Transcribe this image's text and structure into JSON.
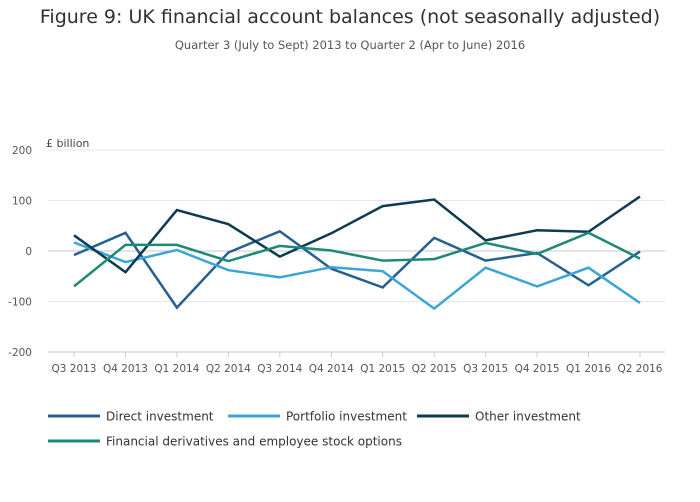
{
  "chart_data": {
    "type": "line",
    "title": "Figure 9: UK financial account balances (not seasonally adjusted)",
    "subtitle": "Quarter 3 (July to Sept) 2013 to Quarter 2 (Apr to June) 2016",
    "ylabel": "£ billion",
    "xlabel": "",
    "ylim": [
      -200,
      200
    ],
    "yticks": [
      200,
      100,
      0,
      -100,
      -200
    ],
    "grid": true,
    "legend_position": "bottom",
    "categories": [
      "Q3 2013",
      "Q4 2013",
      "Q1 2014",
      "Q2 2014",
      "Q3 2014",
      "Q4 2014",
      "Q1 2015",
      "Q2 2015",
      "Q3 2015",
      "Q4 2015",
      "Q1 2016",
      "Q2 2016"
    ],
    "series": [
      {
        "name": "Direct investment",
        "color": "#27608f",
        "values": [
          -8,
          36,
          -112,
          -3,
          39,
          -35,
          -72,
          26,
          -19,
          -4,
          -68,
          -1
        ]
      },
      {
        "name": "Portfolio investment",
        "color": "#3aa5d6",
        "values": [
          17,
          -22,
          2,
          -38,
          -52,
          -32,
          -40,
          -114,
          -33,
          -70,
          -33,
          -103
        ]
      },
      {
        "name": "Other investment",
        "color": "#0e3a52",
        "values": [
          31,
          -42,
          81,
          53,
          -11,
          35,
          89,
          102,
          21,
          41,
          38,
          108
        ]
      },
      {
        "name": "Financial derivatives and employee stock options",
        "color": "#1d8a76",
        "values": [
          -70,
          12,
          12,
          -20,
          10,
          1,
          -19,
          -16,
          16,
          -6,
          36,
          -15
        ]
      }
    ]
  }
}
